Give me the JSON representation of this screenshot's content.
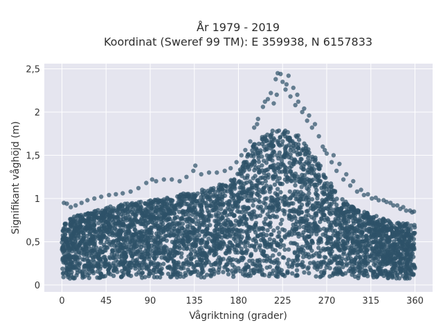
{
  "chart_data": {
    "type": "scatter",
    "title_line1": "År 1979 - 2019",
    "title_line2": "Koordinat (Sweref 99 TM): E 359938, N 6157833",
    "xlabel": "Vågriktning (grader)",
    "ylabel": "Signifikant våghöjd (m)",
    "xlim": [
      -18,
      378
    ],
    "ylim": [
      -0.08,
      2.56
    ],
    "xticks": [
      0,
      45,
      90,
      135,
      180,
      225,
      270,
      315,
      360
    ],
    "xtick_labels": [
      "0",
      "45",
      "90",
      "135",
      "180",
      "225",
      "270",
      "315",
      "360"
    ],
    "yticks": [
      0,
      0.5,
      1,
      1.5,
      2,
      2.5
    ],
    "ytick_labels": [
      "0",
      "0,5",
      "1",
      "1,5",
      "2",
      "2,5"
    ],
    "grid": true,
    "background": "#e5e5ef",
    "marker_color": "#2e5168",
    "envelope": {
      "x": [
        0,
        10,
        20,
        30,
        45,
        60,
        75,
        90,
        105,
        120,
        135,
        150,
        165,
        180,
        195,
        210,
        225,
        240,
        255,
        270,
        285,
        300,
        315,
        330,
        345,
        360
      ],
      "lower": [
        0.07,
        0.07,
        0.08,
        0.08,
        0.08,
        0.08,
        0.08,
        0.08,
        0.08,
        0.08,
        0.08,
        0.08,
        0.09,
        0.09,
        0.09,
        0.09,
        0.09,
        0.09,
        0.09,
        0.09,
        0.08,
        0.08,
        0.08,
        0.07,
        0.07,
        0.07
      ],
      "upper": [
        0.72,
        0.78,
        0.82,
        0.86,
        0.9,
        0.93,
        0.96,
        0.98,
        1.0,
        1.05,
        1.08,
        1.12,
        1.18,
        1.3,
        1.62,
        1.78,
        1.8,
        1.74,
        1.55,
        1.25,
        1.0,
        0.88,
        0.82,
        0.76,
        0.72,
        0.7
      ]
    },
    "outliers": [
      [
        220,
        2.45
      ],
      [
        223,
        2.44
      ],
      [
        231,
        2.42
      ],
      [
        218,
        2.38
      ],
      [
        225,
        2.35
      ],
      [
        236,
        2.28
      ],
      [
        213,
        2.22
      ],
      [
        228,
        2.26
      ],
      [
        210,
        2.15
      ],
      [
        233,
        2.18
      ],
      [
        241,
        2.12
      ],
      [
        205,
        2.06
      ],
      [
        247,
        2.04
      ],
      [
        216,
        2.1
      ],
      [
        238,
        2.08
      ],
      [
        252,
        1.96
      ],
      [
        200,
        1.92
      ],
      [
        258,
        1.86
      ],
      [
        196,
        1.82
      ],
      [
        262,
        1.72
      ],
      [
        192,
        1.66
      ],
      [
        266,
        1.6
      ],
      [
        270,
        1.52
      ],
      [
        275,
        1.42
      ],
      [
        280,
        1.32
      ],
      [
        287,
        1.22
      ],
      [
        294,
        1.15
      ],
      [
        301,
        1.08
      ],
      [
        308,
        1.04
      ],
      [
        316,
        1.0
      ],
      [
        323,
        0.98
      ],
      [
        331,
        0.96
      ],
      [
        338,
        0.92
      ],
      [
        345,
        0.88
      ],
      [
        351,
        0.86
      ],
      [
        357,
        0.84
      ],
      [
        2,
        0.95
      ],
      [
        5,
        0.94
      ],
      [
        9,
        0.9
      ],
      [
        14,
        0.92
      ],
      [
        20,
        0.95
      ],
      [
        26,
        0.98
      ],
      [
        33,
        1.0
      ],
      [
        40,
        1.02
      ],
      [
        48,
        1.04
      ],
      [
        55,
        1.05
      ],
      [
        62,
        1.06
      ],
      [
        70,
        1.08
      ],
      [
        78,
        1.12
      ],
      [
        86,
        1.18
      ],
      [
        92,
        1.22
      ],
      [
        96,
        1.2
      ],
      [
        104,
        1.22
      ],
      [
        112,
        1.22
      ],
      [
        120,
        1.2
      ],
      [
        127,
        1.25
      ],
      [
        134,
        1.32
      ],
      [
        136,
        1.38
      ],
      [
        142,
        1.28
      ],
      [
        150,
        1.3
      ],
      [
        158,
        1.3
      ],
      [
        166,
        1.32
      ],
      [
        172,
        1.35
      ],
      [
        178,
        1.42
      ],
      [
        183,
        1.5
      ],
      [
        187,
        1.56
      ],
      [
        268,
        1.56
      ],
      [
        277,
        1.5
      ],
      [
        283,
        1.4
      ],
      [
        290,
        1.28
      ],
      [
        297,
        1.2
      ],
      [
        305,
        1.1
      ],
      [
        312,
        1.05
      ],
      [
        320,
        1.01
      ],
      [
        328,
        0.98
      ],
      [
        335,
        0.95
      ],
      [
        342,
        0.92
      ],
      [
        348,
        0.9
      ],
      [
        355,
        0.86
      ],
      [
        359,
        0.85
      ],
      [
        229,
        2.32
      ],
      [
        240,
        2.2
      ],
      [
        207,
        2.12
      ],
      [
        219,
        2.2
      ],
      [
        245,
        2.0
      ],
      [
        250,
        1.9
      ],
      [
        255,
        1.82
      ],
      [
        199,
        1.86
      ]
    ]
  }
}
